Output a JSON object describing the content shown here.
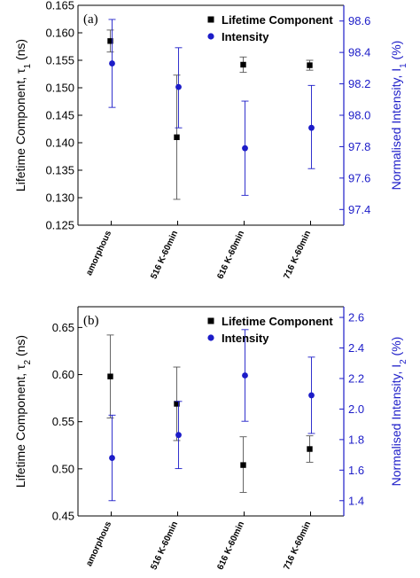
{
  "colors": {
    "lifetime": "#000000",
    "intensity": "#1c1cc8",
    "right_axis": "#1c1cc8",
    "axis": "#000000"
  },
  "chart_data": [
    {
      "type": "scatter",
      "panel_label": "(a)",
      "categories": [
        "amorphous",
        "516 K-60min",
        "616 K-60min",
        "716 K-60min"
      ],
      "ylabel_main": "Lifetime Component, τ",
      "ylabel_sub": "1",
      "ylabel_unit": " (ns)",
      "y2label_main": "Normalised Intensity, I",
      "y2label_sub": "1",
      "y2label_unit": " (%)",
      "ylim": [
        0.125,
        0.165
      ],
      "yticks": [
        0.125,
        0.13,
        0.135,
        0.14,
        0.145,
        0.15,
        0.155,
        0.16,
        0.165
      ],
      "ytick_labels": [
        "0.125",
        "0.130",
        "0.135",
        "0.140",
        "0.145",
        "0.150",
        "0.155",
        "0.160",
        "0.165"
      ],
      "y2lim": [
        97.3,
        98.7
      ],
      "y2ticks": [
        97.4,
        97.6,
        97.8,
        98.0,
        98.2,
        98.4,
        98.6
      ],
      "y2tick_labels": [
        "97.4",
        "97.6",
        "97.8",
        "98.0",
        "98.2",
        "98.4",
        "98.6"
      ],
      "series": [
        {
          "name": "Lifetime Component",
          "axis": "left",
          "marker": "square",
          "values": [
            0.1585,
            0.141,
            0.1542,
            0.1541
          ],
          "err_low": [
            0.1565,
            0.1297,
            0.1528,
            0.1532
          ],
          "err_high": [
            0.1605,
            0.1523,
            0.1556,
            0.155
          ]
        },
        {
          "name": "Intensity",
          "axis": "right",
          "marker": "circle",
          "values": [
            98.33,
            98.18,
            97.79,
            97.92
          ],
          "err_low": [
            98.05,
            97.92,
            97.49,
            97.66
          ],
          "err_high": [
            98.61,
            98.43,
            98.09,
            98.19
          ]
        }
      ],
      "legend_position": "top-right"
    },
    {
      "type": "scatter",
      "panel_label": "(b)",
      "categories": [
        "amorphous",
        "516 K-60min",
        "616 K-60min",
        "716 K-60min"
      ],
      "ylabel_main": "Lifetime Component, τ",
      "ylabel_sub": "2",
      "ylabel_unit": " (ns)",
      "y2label_main": "Normalised Intensity, I",
      "y2label_sub": "2",
      "y2label_unit": " (%)",
      "ylim": [
        0.45,
        0.672
      ],
      "yticks": [
        0.45,
        0.5,
        0.55,
        0.6,
        0.65
      ],
      "ytick_labels": [
        "0.45",
        "0.50",
        "0.55",
        "0.60",
        "0.65"
      ],
      "y2lim": [
        1.3,
        2.67
      ],
      "y2ticks": [
        1.4,
        1.6,
        1.8,
        2.0,
        2.2,
        2.4,
        2.6
      ],
      "y2tick_labels": [
        "1.4",
        "1.6",
        "1.8",
        "2.0",
        "2.2",
        "2.4",
        "2.6"
      ],
      "series": [
        {
          "name": "Lifetime Component",
          "axis": "left",
          "marker": "square",
          "values": [
            0.598,
            0.569,
            0.504,
            0.521
          ],
          "err_low": [
            0.554,
            0.53,
            0.475,
            0.507
          ],
          "err_high": [
            0.642,
            0.608,
            0.534,
            0.535
          ]
        },
        {
          "name": "Intensity",
          "axis": "right",
          "marker": "circle",
          "values": [
            1.68,
            1.83,
            2.22,
            2.09
          ],
          "err_low": [
            1.4,
            1.61,
            1.92,
            1.84
          ],
          "err_high": [
            1.96,
            2.05,
            2.52,
            2.34
          ]
        }
      ],
      "legend_position": "top-right"
    }
  ]
}
